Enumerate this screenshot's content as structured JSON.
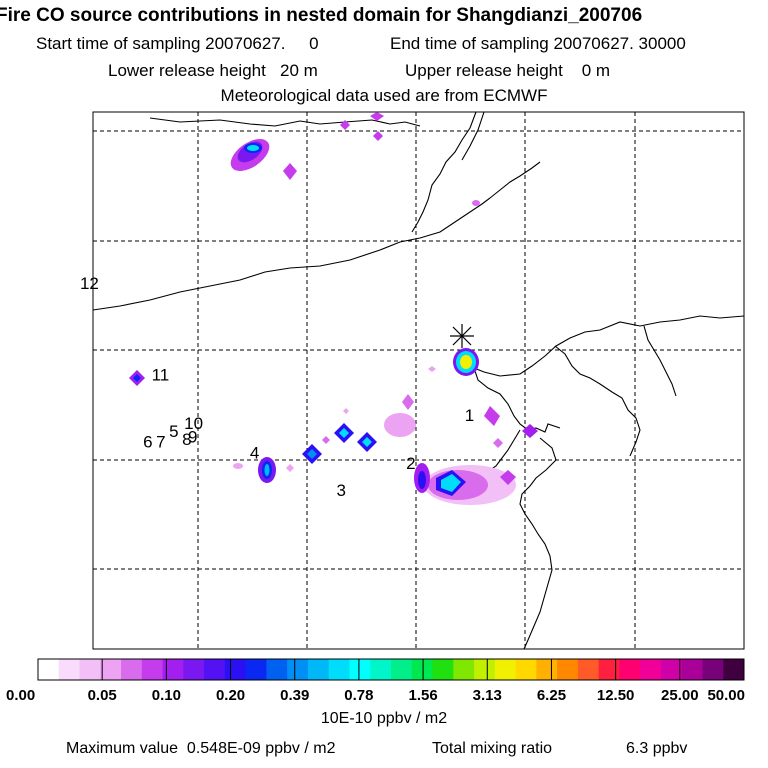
{
  "header": {
    "title": "Fire CO source contributions in nested domain for Shangdianzi_200706",
    "start_sampling": "Start time of sampling 20070627.     0",
    "end_sampling": "End time of sampling 20070627. 30000",
    "lower_release": "Lower release height   20 m",
    "upper_release": "Upper release height    0 m",
    "met_data": "Meteorological data used are from ECMWF"
  },
  "chart_data": {
    "type": "heatmap",
    "title": "Fire CO source contributions in nested domain for Shangdianzi_200706",
    "colorbar": {
      "unit": "10E-10 ppbv / m2",
      "ticks": [
        "0.00",
        "0.05",
        "0.10",
        "0.20",
        "0.39",
        "0.78",
        "1.56",
        "3.13",
        "6.25",
        "12.50",
        "25.00",
        "50.00"
      ],
      "colors": [
        "#ffffff",
        "#f9dcfb",
        "#f2bff7",
        "#eba3f2",
        "#d96cec",
        "#c43cec",
        "#a21ff0",
        "#7a18f2",
        "#5312f4",
        "#2b10f4",
        "#0a28f2",
        "#0060f0",
        "#0090f5",
        "#00b8f8",
        "#00ddfa",
        "#00ffff",
        "#00f5c8",
        "#00ef8a",
        "#00e850",
        "#20e010",
        "#80e800",
        "#c0f000",
        "#f0f000",
        "#ffd800",
        "#ffb000",
        "#ff8800",
        "#ff5a28",
        "#ff2040",
        "#ff0070",
        "#f00098",
        "#d000a8",
        "#a80098",
        "#780078",
        "#400040"
      ]
    },
    "day_labels": [
      {
        "label": "12",
        "lon": -0.02,
        "lat": 0.67
      },
      {
        "label": "11",
        "lon": 0.09,
        "lat": 0.5
      },
      {
        "label": "10",
        "lon": 0.14,
        "lat": 0.41
      },
      {
        "label": "9",
        "lon": 0.146,
        "lat": 0.385
      },
      {
        "label": "8",
        "lon": 0.137,
        "lat": 0.38
      },
      {
        "label": "7",
        "lon": 0.097,
        "lat": 0.375
      },
      {
        "label": "6",
        "lon": 0.077,
        "lat": 0.375
      },
      {
        "label": "5",
        "lon": 0.117,
        "lat": 0.395
      },
      {
        "label": "4",
        "lon": 0.241,
        "lat": 0.355
      },
      {
        "label": "3",
        "lon": 0.374,
        "lat": 0.285
      },
      {
        "label": "2",
        "lon": 0.481,
        "lat": 0.335
      },
      {
        "label": "1",
        "lon": 0.571,
        "lat": 0.425
      }
    ],
    "receptor": {
      "name": "Shangdianzi",
      "lon": 0.59,
      "lat": 0.61
    },
    "max_value_text": "Maximum value  0.548E-09 ppbv / m2",
    "total_label": "Total mixing ratio",
    "total_value": "6.3 ppbv"
  }
}
